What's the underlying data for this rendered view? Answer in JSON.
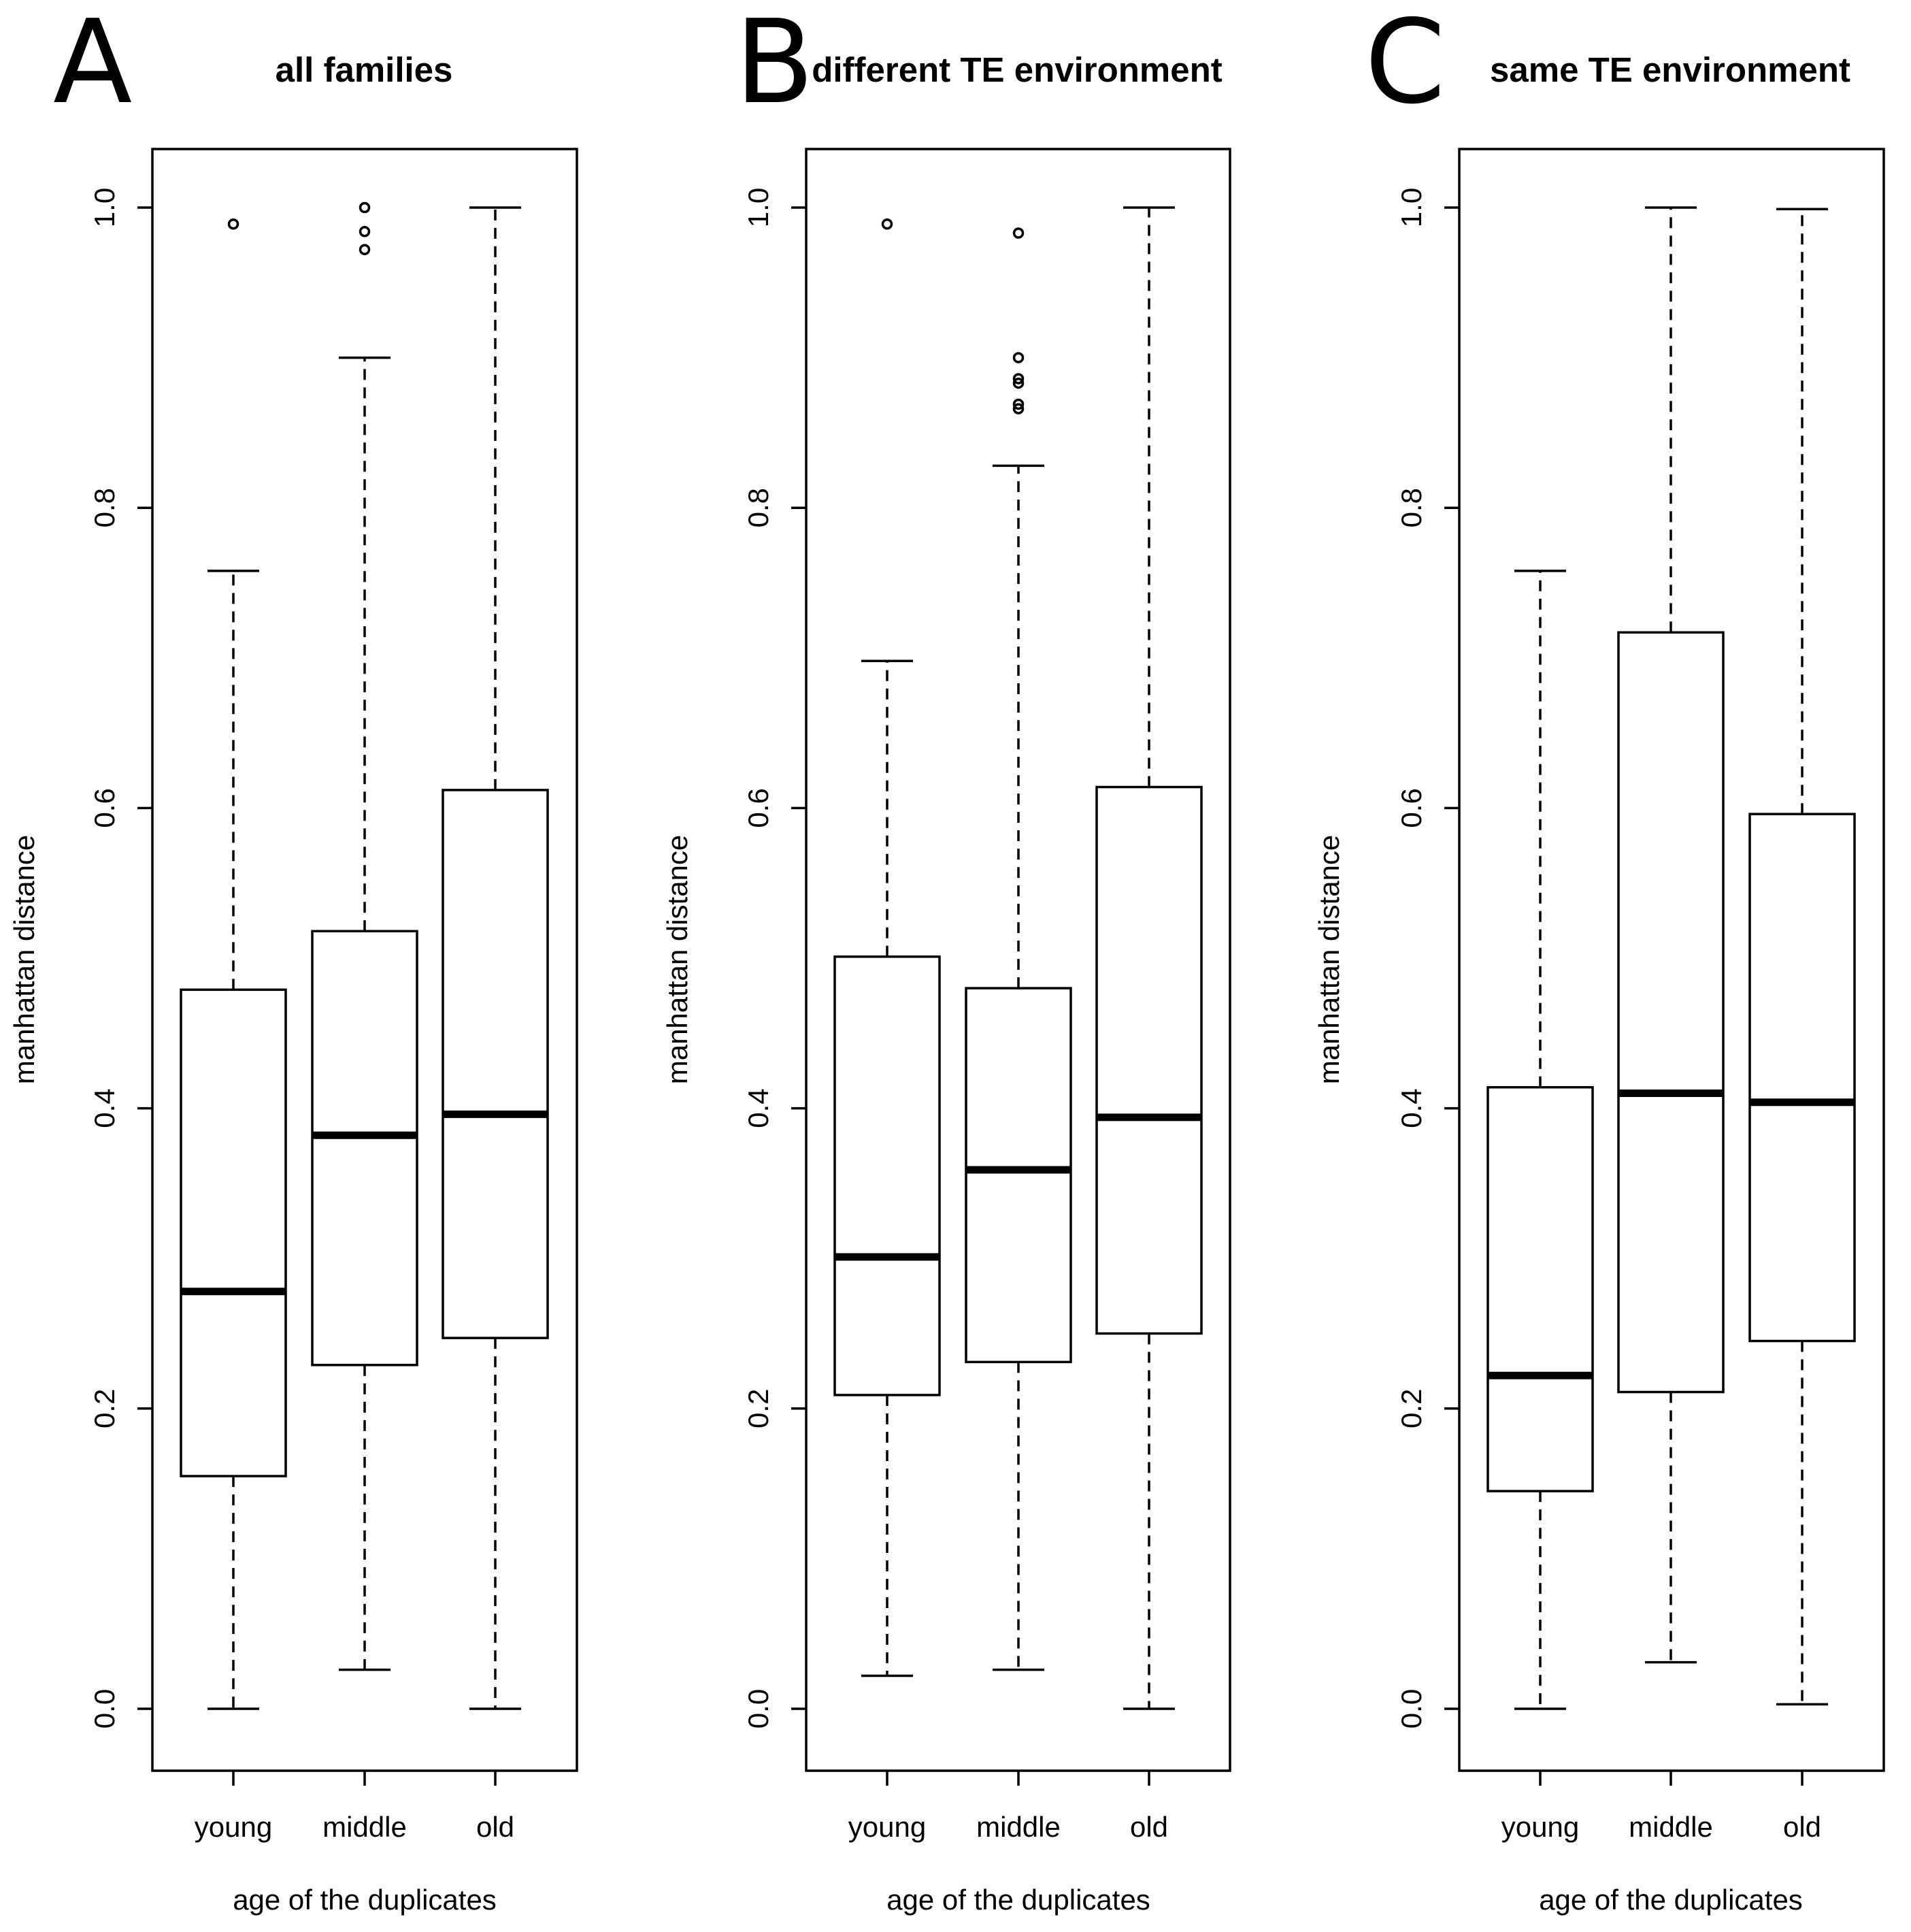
{
  "chart_data": [
    {
      "type": "boxplot",
      "panel_label": "A",
      "title": "all families",
      "xlabel": "age of the duplicates",
      "ylabel": "manhattan distance",
      "ylim": [
        0,
        1
      ],
      "y_ticks": [
        "0.0",
        "0.2",
        "0.4",
        "0.6",
        "0.8",
        "1.0"
      ],
      "categories": [
        "young",
        "middle",
        "old"
      ],
      "boxes": [
        {
          "category": "young",
          "whisker_low": 0.0,
          "q1": 0.155,
          "median": 0.278,
          "q3": 0.479,
          "whisker_high": 0.758,
          "outliers": [
            0.989
          ]
        },
        {
          "category": "middle",
          "whisker_low": 0.026,
          "q1": 0.229,
          "median": 0.382,
          "q3": 0.518,
          "whisker_high": 0.9,
          "outliers": [
            0.972,
            0.984,
            1.0
          ]
        },
        {
          "category": "old",
          "whisker_low": 0.0,
          "q1": 0.247,
          "median": 0.396,
          "q3": 0.612,
          "whisker_high": 1.0,
          "outliers": []
        }
      ]
    },
    {
      "type": "boxplot",
      "panel_label": "B",
      "title": "different TE environment",
      "xlabel": "age of the duplicates",
      "ylabel": "manhattan distance",
      "ylim": [
        0,
        1
      ],
      "y_ticks": [
        "0.0",
        "0.2",
        "0.4",
        "0.6",
        "0.8",
        "1.0"
      ],
      "categories": [
        "young",
        "middle",
        "old"
      ],
      "boxes": [
        {
          "category": "young",
          "whisker_low": 0.022,
          "q1": 0.209,
          "median": 0.301,
          "q3": 0.501,
          "whisker_high": 0.698,
          "outliers": [
            0.989
          ]
        },
        {
          "category": "middle",
          "whisker_low": 0.026,
          "q1": 0.231,
          "median": 0.359,
          "q3": 0.48,
          "whisker_high": 0.828,
          "outliers": [
            0.866,
            0.869,
            0.883,
            0.886,
            0.9,
            0.983
          ]
        },
        {
          "category": "old",
          "whisker_low": 0.0,
          "q1": 0.25,
          "median": 0.394,
          "q3": 0.614,
          "whisker_high": 1.0,
          "outliers": []
        }
      ]
    },
    {
      "type": "boxplot",
      "panel_label": "C",
      "title": "same TE environment",
      "xlabel": "age of the duplicates",
      "ylabel": "manhattan distance",
      "ylim": [
        0,
        1
      ],
      "y_ticks": [
        "0.0",
        "0.2",
        "0.4",
        "0.6",
        "0.8",
        "1.0"
      ],
      "categories": [
        "young",
        "middle",
        "old"
      ],
      "boxes": [
        {
          "category": "young",
          "whisker_low": 0.0,
          "q1": 0.145,
          "median": 0.222,
          "q3": 0.414,
          "whisker_high": 0.758,
          "outliers": []
        },
        {
          "category": "middle",
          "whisker_low": 0.031,
          "q1": 0.211,
          "median": 0.41,
          "q3": 0.717,
          "whisker_high": 1.0,
          "outliers": []
        },
        {
          "category": "old",
          "whisker_low": 0.003,
          "q1": 0.245,
          "median": 0.404,
          "q3": 0.596,
          "whisker_high": 0.999,
          "outliers": []
        }
      ]
    }
  ]
}
